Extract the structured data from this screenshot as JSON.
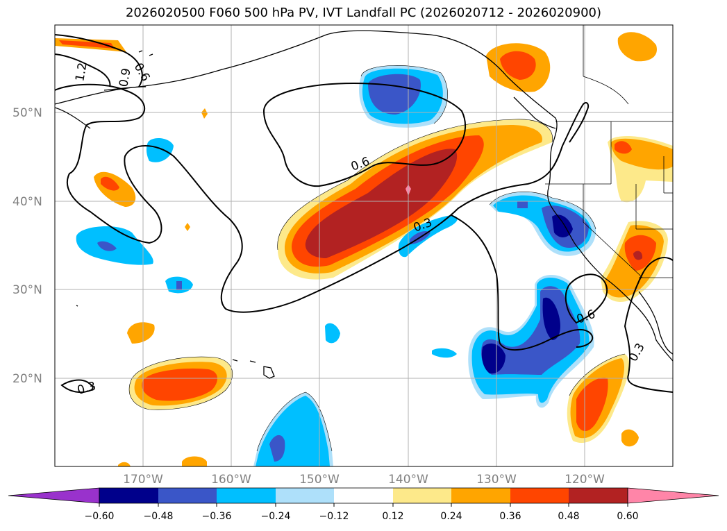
{
  "title": "2026020500 F060 500 hPa PV, IVT Landfall PC (2026020712 - 2026020900)",
  "colors": {
    "neg_060": "#9932cc",
    "neg_048": "#00008b",
    "neg_036": "#3a56c8",
    "neg_024": "#00bfff",
    "neg_012": "#aee0fa",
    "zero": "#ffffff",
    "pos_012": "#fde98a",
    "pos_024": "#ffa500",
    "pos_036": "#ff4500",
    "pos_048": "#b22222",
    "pos_060": "#ff85a8",
    "grid": "#b0b0b0",
    "axis_label": "#808080",
    "contour": "#000000"
  },
  "map": {
    "lon_labels": [
      "170°W",
      "160°W",
      "150°W",
      "140°W",
      "130°W",
      "120°W"
    ],
    "lat_labels": [
      "50°N",
      "40°N",
      "30°N",
      "20°N"
    ],
    "contour_labels": [
      "1.2",
      "0.9",
      "0.6",
      "0.6",
      "0.3",
      "0.6",
      "0.3",
      "0.3"
    ]
  },
  "colorbar": {
    "ticks": [
      "−0.60",
      "−0.48",
      "−0.36",
      "−0.24",
      "−0.12",
      "0.12",
      "0.24",
      "0.36",
      "0.48",
      "0.60"
    ]
  }
}
